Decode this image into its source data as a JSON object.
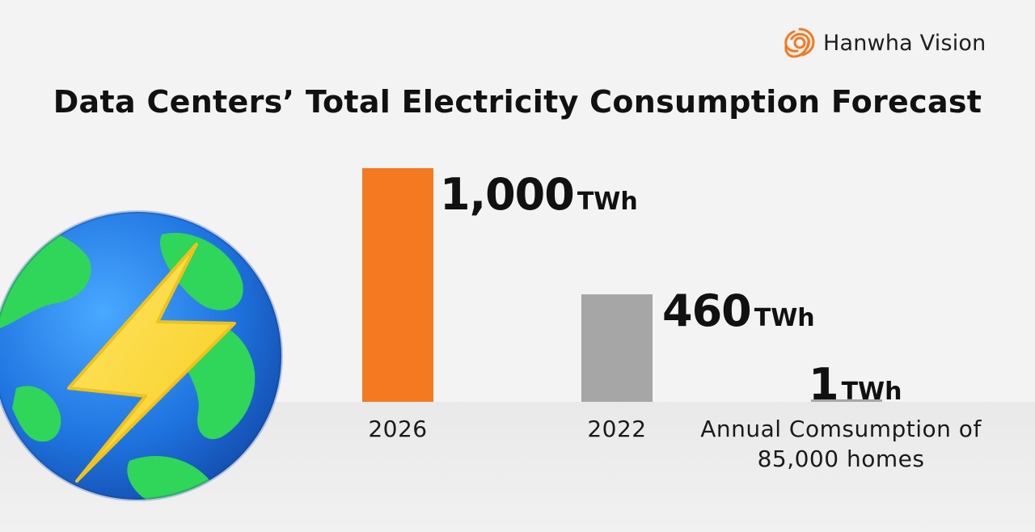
{
  "brand": {
    "name": "Hanwha Vision",
    "accent": "#f47920"
  },
  "chart_data": {
    "type": "bar",
    "title": "Data Centers’ Total Electricity Consumption Forecast",
    "unit": "TWh",
    "categories": [
      "2026",
      "2022",
      "Annual Comsumption of\n85,000 homes"
    ],
    "values": [
      1000,
      460,
      1
    ],
    "value_labels": [
      "1,000",
      "460",
      "1"
    ],
    "colors": [
      "#f47920",
      "#a6a6a6",
      "#a6a6a6"
    ],
    "xlabel": "",
    "ylabel": "",
    "ylim": [
      0,
      1000
    ],
    "grid": false
  },
  "illustration": {
    "icon": "globe-lightning-icon"
  }
}
